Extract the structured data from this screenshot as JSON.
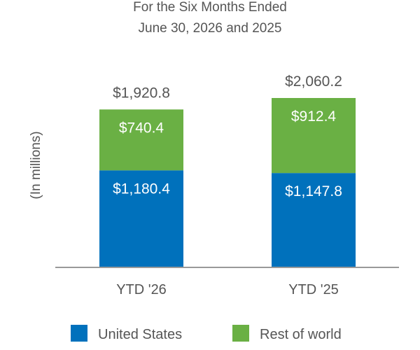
{
  "chart_data": {
    "type": "bar",
    "stacked": true,
    "title_lines": [
      "For the Six Months Ended",
      "June 30, 2026 and 2025"
    ],
    "ylabel": "(In millions)",
    "xlabel": "",
    "categories": [
      "YTD '26",
      "YTD '25"
    ],
    "series": [
      {
        "name": "United States",
        "color": "#0071bc",
        "values": [
          1180.4,
          1147.8
        ],
        "labels": [
          "$1,180.4",
          "$1,147.8"
        ]
      },
      {
        "name": "Rest of world",
        "color": "#6ab044",
        "values": [
          740.4,
          912.4
        ],
        "labels": [
          "$740.4",
          "$912.4"
        ]
      }
    ],
    "totals": [
      1920.8,
      2060.2
    ],
    "total_labels": [
      "$1,920.8",
      "$2,060.2"
    ],
    "ylim": [
      0,
      2060.2
    ],
    "grid": false,
    "legend_position": "bottom"
  }
}
